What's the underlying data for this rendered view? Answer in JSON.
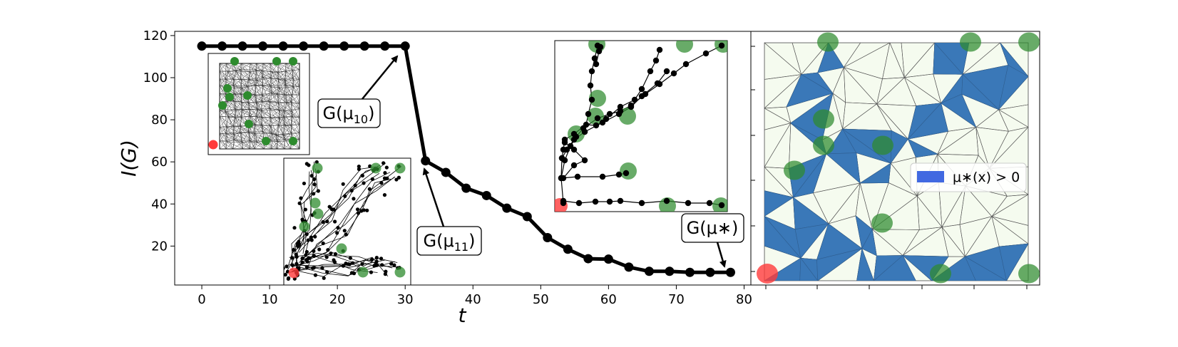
{
  "chart_data": {
    "type": "line",
    "xlabel": "t",
    "ylabel": "I(G)",
    "xlim": [
      -4,
      81
    ],
    "ylim": [
      1.5,
      122
    ],
    "xticks": [
      "0",
      "10",
      "20",
      "30",
      "40",
      "50",
      "60",
      "70",
      "80"
    ],
    "yticks": [
      "20",
      "40",
      "60",
      "80",
      "100",
      "120"
    ],
    "series": [
      {
        "x": [
          0,
          3,
          6,
          9,
          12,
          15,
          18,
          21,
          24,
          27,
          30,
          33,
          36,
          39,
          42,
          45,
          48,
          51,
          54,
          57,
          60,
          63,
          66,
          69,
          72,
          75,
          78
        ],
        "y": [
          115,
          115,
          115,
          115,
          115,
          115,
          115,
          115,
          115,
          115,
          115,
          60.5,
          55,
          47.5,
          44,
          38,
          34,
          24,
          18.5,
          14,
          13.8,
          10,
          8,
          8,
          7.5,
          7.5,
          7.5
        ]
      }
    ],
    "annotations": [
      {
        "label": "G(μ",
        "sub": "10",
        "suffix": ")",
        "points_to": [
          29.5,
          113
        ]
      },
      {
        "label": "G(μ",
        "sub": "11",
        "suffix": ")",
        "points_to": [
          33,
          62
        ]
      },
      {
        "label": "G(μ∗)",
        "sub": "",
        "suffix": "",
        "points_to": [
          78,
          8
        ]
      }
    ],
    "legend": {
      "label": "μ∗(x) > 0",
      "placement": "center-right",
      "color": "#4169e1"
    },
    "colors": {
      "line": "#000000",
      "source_node": "#ff3b3b",
      "target_node": "#2e8b2e",
      "mesh_fill": "#3a78b8",
      "mesh_background": "#f5fbef"
    }
  }
}
